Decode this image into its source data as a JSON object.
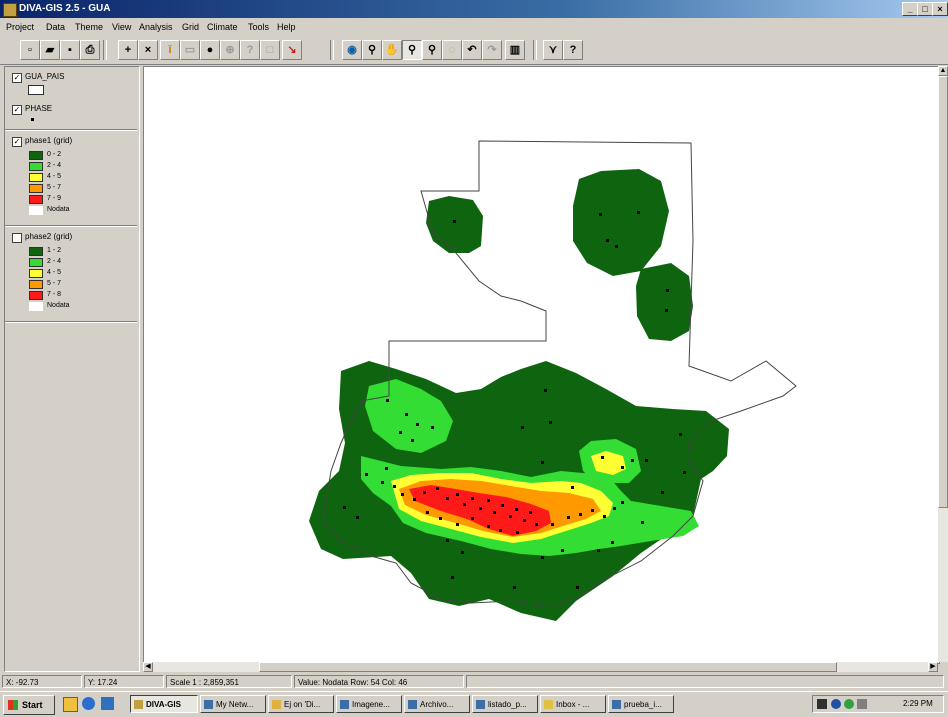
{
  "window": {
    "title": "DIVA-GIS 2.5 - GUA"
  },
  "menu": [
    "Project",
    "Data",
    "Theme",
    "View",
    "Analysis",
    "Grid",
    "Climate",
    "Tools",
    "Help"
  ],
  "legend": {
    "layers": [
      {
        "name": "GUA_PAIS",
        "checked": true
      },
      {
        "name": "PHASE",
        "checked": true
      },
      {
        "name": "phase1 (grid)",
        "checked": true,
        "classes": [
          "0 - 2",
          "2 - 4",
          "4 - 5",
          "5 - 7",
          "7 - 9",
          "Nodata"
        ]
      },
      {
        "name": "phase2 (grid)",
        "checked": false,
        "classes": [
          "1 - 2",
          "2 - 4",
          "4 - 5",
          "5 - 7",
          "7 - 8",
          "Nodata"
        ]
      }
    ],
    "colors": [
      "#0f640f",
      "#33dd33",
      "#ffff33",
      "#ff9900",
      "#ff1a1a",
      "#ffffff"
    ]
  },
  "status": {
    "x": "X: -92.73",
    "y": "Y: 17.24",
    "scale": "Scale 1 : 2,859,351",
    "value": "Value: Nodata  Row: 54  Col: 46"
  },
  "taskbar": {
    "start": "Start",
    "tasks": [
      "DIVA-GIS",
      "My Netw...",
      "Ej on 'Di...",
      "Imagene...",
      "Archivo...",
      "listado_p...",
      "Inbox - ...",
      "prueba_i..."
    ],
    "time": "2:29 PM"
  }
}
